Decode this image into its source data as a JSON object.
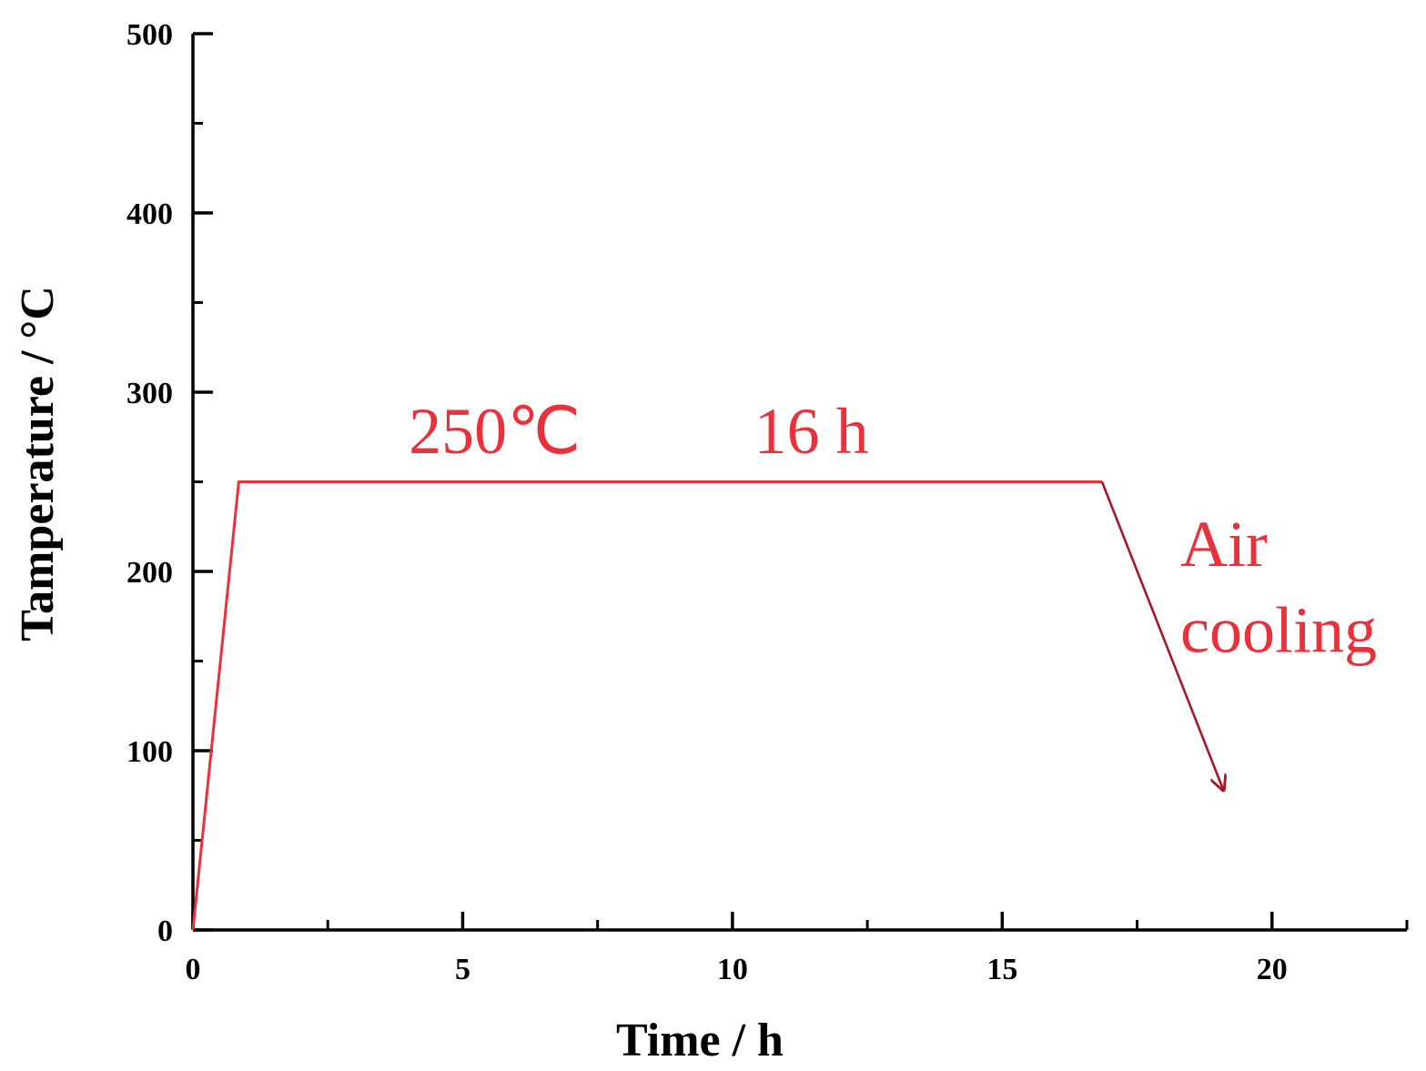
{
  "chart_data": {
    "type": "line",
    "xlabel": "Time / h",
    "ylabel": "Tamperature / °C",
    "xlim": [
      0,
      22.5
    ],
    "ylim": [
      0,
      500
    ],
    "x_ticks": [
      0,
      5,
      10,
      15,
      20
    ],
    "x_tick_labels": [
      "0",
      "5",
      "10",
      "15",
      "20"
    ],
    "x_minor_ticks": [
      2.5,
      7.5,
      12.5,
      17.5,
      22.5
    ],
    "y_ticks": [
      0,
      100,
      200,
      300,
      400,
      500
    ],
    "y_tick_labels": [
      "0",
      "100",
      "200",
      "300",
      "400",
      "500"
    ],
    "y_minor_ticks": [
      50,
      150,
      250,
      350,
      450
    ],
    "grid": false,
    "series": [
      {
        "x": [
          0,
          0.85,
          16.85
        ],
        "y": [
          0,
          250,
          250
        ],
        "color": "#e8313a"
      }
    ],
    "arrow": {
      "from": [
        16.85,
        250
      ],
      "to": [
        19.1,
        78
      ],
      "color": "#a8162a"
    },
    "annotations": [
      {
        "id": "temp",
        "text": "250℃",
        "x": 4.0,
        "y": 266,
        "color": "#e8313a"
      },
      {
        "id": "time",
        "text": "16 h",
        "x": 10.4,
        "y": 266,
        "color": "#e8313a"
      },
      {
        "id": "air",
        "text": "Air",
        "x": 18.3,
        "y": 203,
        "color": "#e8313a"
      },
      {
        "id": "cooling",
        "text": "cooling",
        "x": 18.3,
        "y": 155,
        "color": "#e8313a"
      }
    ]
  }
}
